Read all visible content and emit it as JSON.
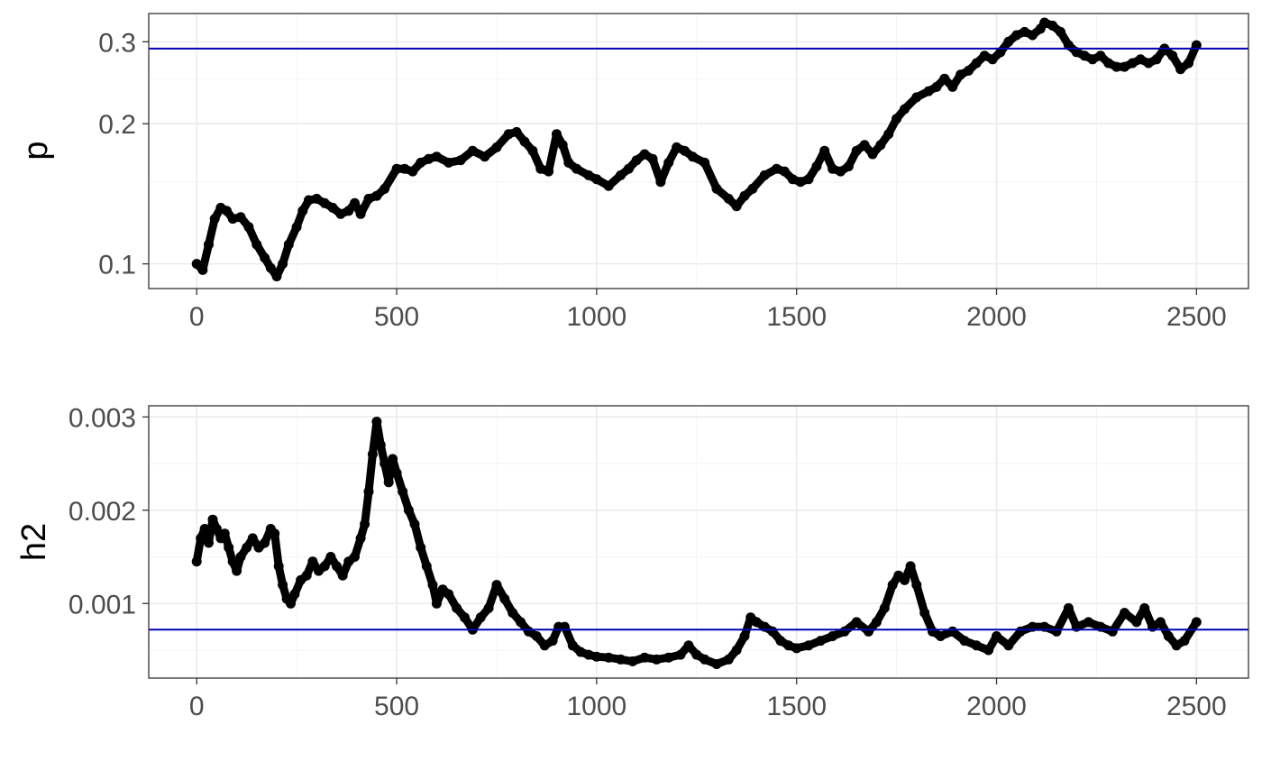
{
  "chart_data": [
    {
      "type": "scatter",
      "ylabel": "p",
      "xlabel": "",
      "title": "",
      "xlim": [
        -120,
        2630
      ],
      "ylim": [
        0.0885,
        0.345
      ],
      "yscale": "log",
      "grid": true,
      "xticks": [
        0,
        500,
        1000,
        1500,
        2000,
        2500
      ],
      "xtick_labels": [
        "0",
        "500",
        "1000",
        "1500",
        "2000",
        "2500"
      ],
      "yticks": [
        0.1,
        0.2,
        0.3
      ],
      "ytick_labels": [
        "0.1",
        "0.2",
        "0.3"
      ],
      "yminor": [
        0.15,
        0.25
      ],
      "hline": {
        "y": 0.29,
        "color": "#0000b3"
      },
      "point_color": "#000000",
      "series": [
        {
          "x": [
            0,
            15,
            30,
            45,
            60,
            75,
            90,
            110,
            130,
            150,
            170,
            185,
            200,
            215,
            230,
            250,
            265,
            280,
            300,
            320,
            340,
            360,
            380,
            395,
            410,
            430,
            450,
            470,
            500,
            520,
            540,
            560,
            580,
            600,
            630,
            660,
            690,
            720,
            750,
            780,
            800,
            820,
            840,
            860,
            880,
            900,
            915,
            930,
            950,
            980,
            1000,
            1030,
            1060,
            1080,
            1100,
            1120,
            1140,
            1160,
            1180,
            1200,
            1220,
            1240,
            1270,
            1300,
            1330,
            1350,
            1370,
            1390,
            1420,
            1450,
            1470,
            1490,
            1510,
            1530,
            1550,
            1570,
            1590,
            1610,
            1630,
            1650,
            1670,
            1690,
            1710,
            1730,
            1750,
            1770,
            1800,
            1830,
            1850,
            1870,
            1890,
            1910,
            1930,
            1950,
            1970,
            1990,
            2010,
            2030,
            2050,
            2070,
            2090,
            2110,
            2120,
            2140,
            2160,
            2180,
            2200,
            2220,
            2240,
            2260,
            2280,
            2300,
            2320,
            2340,
            2360,
            2380,
            2400,
            2420,
            2440,
            2460,
            2480,
            2500
          ],
          "y": [
            0.1,
            0.097,
            0.11,
            0.125,
            0.132,
            0.13,
            0.125,
            0.126,
            0.12,
            0.11,
            0.103,
            0.098,
            0.094,
            0.1,
            0.11,
            0.12,
            0.13,
            0.137,
            0.138,
            0.135,
            0.132,
            0.128,
            0.13,
            0.135,
            0.128,
            0.138,
            0.14,
            0.145,
            0.16,
            0.16,
            0.158,
            0.165,
            0.168,
            0.17,
            0.165,
            0.167,
            0.175,
            0.17,
            0.178,
            0.19,
            0.192,
            0.183,
            0.175,
            0.16,
            0.158,
            0.19,
            0.18,
            0.165,
            0.16,
            0.155,
            0.152,
            0.147,
            0.155,
            0.16,
            0.167,
            0.172,
            0.168,
            0.15,
            0.165,
            0.178,
            0.175,
            0.17,
            0.165,
            0.145,
            0.138,
            0.133,
            0.14,
            0.145,
            0.155,
            0.16,
            0.158,
            0.152,
            0.15,
            0.152,
            0.162,
            0.175,
            0.16,
            0.158,
            0.162,
            0.175,
            0.18,
            0.172,
            0.18,
            0.19,
            0.205,
            0.215,
            0.228,
            0.235,
            0.24,
            0.25,
            0.24,
            0.255,
            0.26,
            0.27,
            0.28,
            0.275,
            0.285,
            0.3,
            0.31,
            0.315,
            0.31,
            0.32,
            0.33,
            0.325,
            0.315,
            0.295,
            0.285,
            0.28,
            0.275,
            0.28,
            0.27,
            0.265,
            0.265,
            0.27,
            0.275,
            0.27,
            0.275,
            0.29,
            0.28,
            0.262,
            0.27,
            0.295
          ]
        }
      ]
    },
    {
      "type": "scatter",
      "ylabel": "h2",
      "xlabel": "",
      "title": "",
      "xlim": [
        -120,
        2630
      ],
      "ylim": [
        0.0002,
        0.00312
      ],
      "grid": true,
      "xticks": [
        0,
        500,
        1000,
        1500,
        2000,
        2500
      ],
      "xtick_labels": [
        "0",
        "500",
        "1000",
        "1500",
        "2000",
        "2500"
      ],
      "yticks": [
        0.001,
        0.002,
        0.003
      ],
      "ytick_labels": [
        "0.001",
        "0.002",
        "0.003"
      ],
      "yminor": [
        0.0005,
        0.0015,
        0.0025
      ],
      "hline": {
        "y": 0.00072,
        "color": "#0000b3"
      },
      "point_color": "#000000",
      "series": [
        {
          "x": [
            0,
            10,
            20,
            30,
            40,
            50,
            60,
            70,
            80,
            90,
            100,
            110,
            125,
            140,
            155,
            170,
            185,
            195,
            205,
            215,
            225,
            235,
            245,
            260,
            275,
            290,
            305,
            320,
            335,
            350,
            365,
            380,
            395,
            410,
            420,
            430,
            440,
            450,
            460,
            470,
            480,
            490,
            500,
            515,
            530,
            545,
            560,
            575,
            590,
            600,
            615,
            630,
            650,
            670,
            690,
            710,
            730,
            750,
            770,
            790,
            810,
            830,
            850,
            870,
            890,
            905,
            920,
            940,
            960,
            980,
            1000,
            1030,
            1060,
            1090,
            1120,
            1150,
            1180,
            1210,
            1230,
            1250,
            1270,
            1300,
            1330,
            1350,
            1370,
            1385,
            1400,
            1420,
            1440,
            1460,
            1480,
            1500,
            1530,
            1560,
            1590,
            1620,
            1650,
            1680,
            1700,
            1720,
            1740,
            1755,
            1770,
            1785,
            1800,
            1820,
            1840,
            1860,
            1890,
            1920,
            1950,
            1980,
            2000,
            2030,
            2060,
            2090,
            2120,
            2150,
            2180,
            2200,
            2230,
            2260,
            2290,
            2320,
            2350,
            2370,
            2390,
            2410,
            2430,
            2450,
            2470,
            2500
          ],
          "y": [
            0.00145,
            0.0017,
            0.0018,
            0.00165,
            0.0019,
            0.0018,
            0.0017,
            0.00175,
            0.0016,
            0.00145,
            0.00135,
            0.0015,
            0.0016,
            0.0017,
            0.0016,
            0.00165,
            0.0018,
            0.00175,
            0.0014,
            0.0012,
            0.00105,
            0.001,
            0.0011,
            0.00125,
            0.0013,
            0.00145,
            0.00135,
            0.0014,
            0.0015,
            0.0014,
            0.0013,
            0.00145,
            0.0015,
            0.0017,
            0.00185,
            0.0022,
            0.0026,
            0.00295,
            0.0027,
            0.0025,
            0.0023,
            0.00255,
            0.0024,
            0.0022,
            0.002,
            0.00185,
            0.0016,
            0.0014,
            0.0012,
            0.001,
            0.00115,
            0.0011,
            0.00095,
            0.00085,
            0.00072,
            0.00085,
            0.00095,
            0.0012,
            0.00105,
            0.0009,
            0.0008,
            0.0007,
            0.00065,
            0.00055,
            0.0006,
            0.00075,
            0.00075,
            0.00055,
            0.00048,
            0.00045,
            0.00043,
            0.00042,
            0.0004,
            0.00038,
            0.00042,
            0.0004,
            0.00042,
            0.00045,
            0.00055,
            0.00045,
            0.0004,
            0.00035,
            0.0004,
            0.0005,
            0.00065,
            0.00085,
            0.0008,
            0.00075,
            0.0007,
            0.0006,
            0.00055,
            0.00052,
            0.00055,
            0.0006,
            0.00065,
            0.0007,
            0.0008,
            0.0007,
            0.0008,
            0.00095,
            0.0012,
            0.0013,
            0.00125,
            0.0014,
            0.0012,
            0.0009,
            0.0007,
            0.00065,
            0.0007,
            0.0006,
            0.00055,
            0.0005,
            0.00065,
            0.00055,
            0.0007,
            0.00075,
            0.00075,
            0.0007,
            0.00095,
            0.00075,
            0.0008,
            0.00075,
            0.0007,
            0.0009,
            0.0008,
            0.00095,
            0.00075,
            0.0008,
            0.00065,
            0.00055,
            0.0006,
            0.0008
          ]
        }
      ]
    }
  ]
}
